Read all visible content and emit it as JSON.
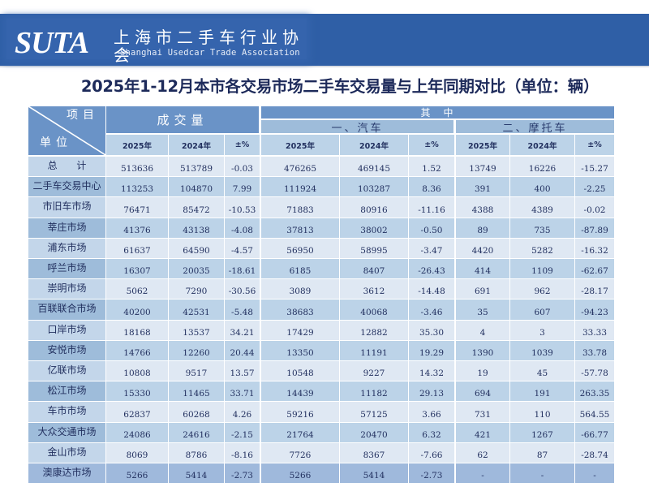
{
  "banner": {
    "logo": "SUTA",
    "org_name_cn": "上海市二手车行业协会",
    "org_name_en": "Shanghai Usedcar Trade Association"
  },
  "page_title": "2025年1-12月本市各交易市场二手车交易量与上年同期对比（单位：辆）",
  "table": {
    "corner": {
      "top": "项目",
      "bottom": "单位"
    },
    "groups": {
      "volume": "成交量",
      "of_which": "其　中",
      "cars": "一、汽车",
      "motorcycles": "二、摩托车"
    },
    "columns": [
      "2025年",
      "2024年",
      "±%",
      "2025年",
      "2024年",
      "±%",
      "2025年",
      "2024年",
      "±%"
    ],
    "rows": [
      {
        "name": "总 计",
        "v": [
          "513636",
          "513789",
          "-0.03",
          "476265",
          "469145",
          "1.52",
          "13749",
          "16226",
          "-15.27"
        ]
      },
      {
        "name": "二手车交易中心",
        "v": [
          "113253",
          "104870",
          "7.99",
          "111924",
          "103287",
          "8.36",
          "391",
          "400",
          "-2.25"
        ]
      },
      {
        "name": "市旧车市场",
        "v": [
          "76471",
          "85472",
          "-10.53",
          "71883",
          "80916",
          "-11.16",
          "4388",
          "4389",
          "-0.02"
        ]
      },
      {
        "name": "莘庄市场",
        "v": [
          "41376",
          "43138",
          "-4.08",
          "37813",
          "38002",
          "-0.50",
          "89",
          "735",
          "-87.89"
        ]
      },
      {
        "name": "浦东市场",
        "v": [
          "61637",
          "64590",
          "-4.57",
          "56950",
          "58995",
          "-3.47",
          "4420",
          "5282",
          "-16.32"
        ]
      },
      {
        "name": "呼兰市场",
        "v": [
          "16307",
          "20035",
          "-18.61",
          "6185",
          "8407",
          "-26.43",
          "414",
          "1109",
          "-62.67"
        ]
      },
      {
        "name": "崇明市场",
        "v": [
          "5062",
          "7290",
          "-30.56",
          "3089",
          "3612",
          "-14.48",
          "691",
          "962",
          "-28.17"
        ]
      },
      {
        "name": "百联联合市场",
        "v": [
          "40200",
          "42531",
          "-5.48",
          "38683",
          "40068",
          "-3.46",
          "35",
          "607",
          "-94.23"
        ]
      },
      {
        "name": "口岸市场",
        "v": [
          "18168",
          "13537",
          "34.21",
          "17429",
          "12882",
          "35.30",
          "4",
          "3",
          "33.33"
        ]
      },
      {
        "name": "安悦市场",
        "v": [
          "14766",
          "12260",
          "20.44",
          "13350",
          "11191",
          "19.29",
          "1390",
          "1039",
          "33.78"
        ]
      },
      {
        "name": "亿联市场",
        "v": [
          "10808",
          "9517",
          "13.57",
          "10548",
          "9227",
          "14.32",
          "19",
          "45",
          "-57.78"
        ]
      },
      {
        "name": "松江市场",
        "v": [
          "15330",
          "11465",
          "33.71",
          "14439",
          "11182",
          "29.13",
          "694",
          "191",
          "263.35"
        ]
      },
      {
        "name": "车市市场",
        "v": [
          "62837",
          "60268",
          "4.26",
          "59216",
          "57125",
          "3.66",
          "731",
          "110",
          "564.55"
        ]
      },
      {
        "name": "大众交通市场",
        "v": [
          "24086",
          "24616",
          "-2.15",
          "21764",
          "20470",
          "6.32",
          "421",
          "1267",
          "-66.77"
        ]
      },
      {
        "name": "金山市场",
        "v": [
          "8069",
          "8786",
          "-8.16",
          "7726",
          "8367",
          "-7.66",
          "62",
          "87",
          "-28.74"
        ]
      },
      {
        "name": "澳康达市场",
        "v": [
          "5266",
          "5414",
          "-2.73",
          "5266",
          "5414",
          "-2.73",
          "-",
          "-",
          "-"
        ]
      }
    ]
  },
  "colors": {
    "banner_bg": "#2f5fa6",
    "title_text": "#1d2a5a",
    "header_dark": "#6a93c7",
    "header_mid": "#9ebcda",
    "header_light": "#bcd3e8",
    "row_light": "#dfe8f3",
    "row_dark": "#bcd3e8",
    "label_light": "#c3d6ea",
    "label_dark": "#9ebcda",
    "last_row": "#9fb9dc"
  }
}
